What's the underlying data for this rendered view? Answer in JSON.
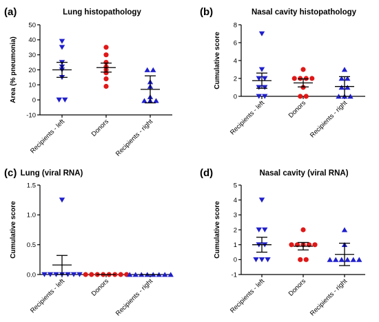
{
  "colors": {
    "left": "#1f1fcc",
    "donors": "#e01818",
    "right": "#1f1fcc"
  },
  "categories": [
    "Recipients - left",
    "Donors",
    "Recipients - right"
  ],
  "markers": [
    "triangle-down",
    "circle",
    "triangle-up"
  ],
  "chart_data": [
    {
      "type": "scatter",
      "letter": "(a)",
      "title": "Lung histopathology",
      "ylabel": "Area  (% pneumonia)",
      "ylim": [
        -10,
        50
      ],
      "yticks": [
        -10,
        0,
        10,
        20,
        30,
        40,
        50
      ],
      "tick_labels": [
        "-10",
        "0",
        "10",
        "20",
        "30",
        "40",
        "50"
      ],
      "categories": [
        "Recipients - left",
        "Donors",
        "Recipients - right"
      ],
      "series": [
        {
          "category": "Recipients - left",
          "values": [
            0,
            0,
            15,
            20,
            22,
            25,
            35,
            39
          ],
          "mean": 20,
          "err": 5
        },
        {
          "category": "Donors",
          "values": [
            9,
            14,
            18,
            20,
            22,
            25,
            30,
            35
          ],
          "mean": 21.5,
          "err": 3
        },
        {
          "category": "Recipients - right",
          "values": [
            -0.5,
            -0.5,
            -0.5,
            2,
            9,
            12,
            20,
            20
          ],
          "mean": 7,
          "err": 9
        }
      ]
    },
    {
      "type": "scatter",
      "letter": "(b)",
      "title": "Nasal cavity histopathology",
      "ylabel": "Cumulative score",
      "ylim": [
        0,
        8
      ],
      "yticks": [
        0,
        2,
        4,
        6,
        8
      ],
      "tick_labels": [
        "0",
        "2",
        "4",
        "6",
        "8"
      ],
      "categories": [
        "Recipients - left",
        "Donors",
        "Recipients - right"
      ],
      "series": [
        {
          "category": "Recipients - left",
          "values": [
            0,
            0,
            1,
            1,
            2,
            2,
            3,
            7
          ],
          "mean": 1.75,
          "err": 0.85
        },
        {
          "category": "Donors",
          "values": [
            0,
            0,
            1,
            2,
            2,
            2,
            2,
            3
          ],
          "mean": 1.5,
          "err": 0.45
        },
        {
          "category": "Recipients - right",
          "values": [
            0,
            0,
            0,
            1,
            1,
            2,
            2,
            3
          ],
          "mean": 1.1,
          "err": 1.1
        }
      ]
    },
    {
      "type": "scatter",
      "letter": "(c)",
      "title": "Lung (viral  RNA)",
      "ylabel": "Cumulative score",
      "ylim": [
        0,
        1.5
      ],
      "yticks": [
        0,
        0.5,
        1.0,
        1.5
      ],
      "tick_labels": [
        "0.0",
        "0.5",
        "1.0",
        "1.5"
      ],
      "categories": [
        "Recipients - left",
        "Donors",
        "Recipients - right"
      ],
      "series": [
        {
          "category": "Recipients - left",
          "values": [
            0,
            0,
            0,
            0,
            0,
            0,
            0,
            1.25
          ],
          "mean": 0.16,
          "err": 0.16
        },
        {
          "category": "Donors",
          "values": [
            0,
            0,
            0,
            0,
            0,
            0,
            0,
            0
          ],
          "mean": 0,
          "err": 0
        },
        {
          "category": "Recipients - right",
          "values": [
            0,
            0,
            0,
            0,
            0,
            0,
            0,
            0
          ],
          "mean": 0,
          "err": 0
        }
      ]
    },
    {
      "type": "scatter",
      "letter": "(d)",
      "title": "Nasal cavity  (viral  RNA)",
      "ylabel": "Cumulative score",
      "ylim": [
        -1,
        5
      ],
      "yticks": [
        -1,
        0,
        1,
        2,
        3,
        4,
        5
      ],
      "tick_labels": [
        "-1",
        "0",
        "1",
        "2",
        "3",
        "4",
        "5"
      ],
      "categories": [
        "Recipients - left",
        "Donors",
        "Recipients - right"
      ],
      "series": [
        {
          "category": "Recipients - left",
          "values": [
            0,
            0,
            0,
            1,
            1,
            2,
            2,
            4
          ],
          "mean": 1,
          "err": 0.5
        },
        {
          "category": "Donors",
          "values": [
            0,
            0,
            1,
            1,
            1,
            1,
            1,
            2
          ],
          "mean": 0.9,
          "err": 0.25
        },
        {
          "category": "Recipients - right",
          "values": [
            0,
            0,
            0,
            0,
            0,
            0,
            1,
            2
          ],
          "mean": 0.35,
          "err": 0.75
        }
      ]
    }
  ]
}
